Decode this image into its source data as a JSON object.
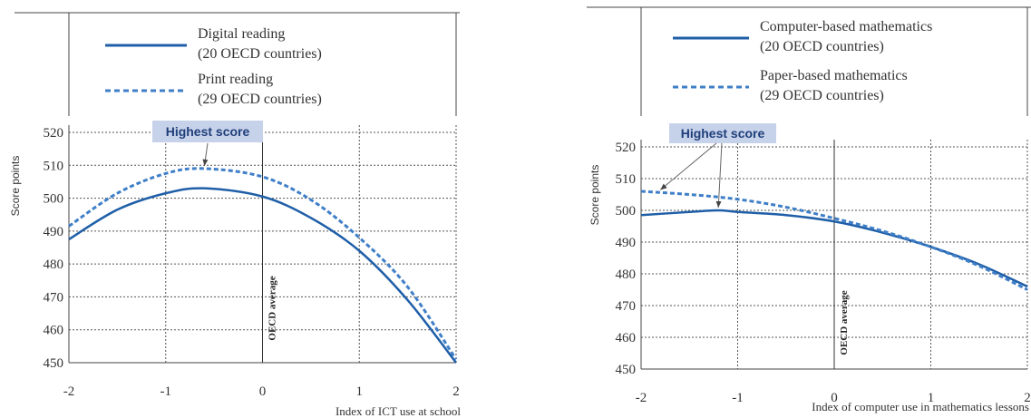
{
  "chart_data": [
    {
      "type": "line",
      "title": "",
      "xlabel": "Index of ICT use at school",
      "ylabel": "Score points",
      "xlim": [
        -2,
        2
      ],
      "ylim": [
        450,
        520
      ],
      "xticks": [
        "-2",
        "-1",
        "0",
        "1",
        "2"
      ],
      "yticks": [
        "450",
        "460",
        "470",
        "480",
        "490",
        "500",
        "510",
        "520"
      ],
      "grid": true,
      "reference_line": {
        "x": 0,
        "label": "OECD average"
      },
      "annotation": {
        "label": "Highest score"
      },
      "legend": {
        "position": "top",
        "entries": [
          {
            "name": "Digital reading",
            "sub": "(20 OECD countries)",
            "style": "solid"
          },
          {
            "name": "Print reading",
            "sub": "(29 OECD countries)",
            "style": "dashed"
          }
        ]
      },
      "series": [
        {
          "name": "Digital reading",
          "style": "solid",
          "color": "#1f5fa8",
          "x": [
            -2,
            -1.5,
            -1,
            -0.6,
            0,
            0.5,
            1,
            1.5,
            2
          ],
          "y": [
            487.5,
            496.5,
            501.5,
            503,
            500.5,
            494,
            484,
            469,
            450
          ]
        },
        {
          "name": "Print reading",
          "style": "dashed",
          "color": "#3f7fc8",
          "x": [
            -2,
            -1.5,
            -1,
            -0.6,
            0,
            0.5,
            1,
            1.5,
            2
          ],
          "y": [
            491.5,
            501.5,
            507.5,
            509,
            506.5,
            499.5,
            488,
            473,
            451
          ]
        }
      ]
    },
    {
      "type": "line",
      "title": "",
      "xlabel": "Index of computer use in mathematics lessons",
      "ylabel": "Score points",
      "xlim": [
        -2,
        2
      ],
      "ylim": [
        450,
        520
      ],
      "xticks": [
        "-2",
        "-1",
        "0",
        "1",
        "2"
      ],
      "yticks": [
        "450",
        "460",
        "470",
        "480",
        "490",
        "500",
        "510",
        "520"
      ],
      "grid": true,
      "reference_line": {
        "x": 0,
        "label": "OECD average"
      },
      "annotation": {
        "label": "Highest score"
      },
      "legend": {
        "position": "top",
        "entries": [
          {
            "name": "Computer-based mathematics",
            "sub": "(20 OECD countries)",
            "style": "solid"
          },
          {
            "name": "Paper-based mathematics",
            "sub": "(29 OECD countries)",
            "style": "dashed"
          }
        ]
      },
      "series": [
        {
          "name": "Computer-based mathematics",
          "style": "solid",
          "color": "#1f5fa8",
          "x": [
            -2,
            -1.5,
            -1.2,
            -1,
            -0.5,
            0,
            0.5,
            1,
            1.5,
            2
          ],
          "y": [
            498.5,
            499.5,
            500,
            499.5,
            498.5,
            496.5,
            493,
            488.5,
            483,
            476
          ]
        },
        {
          "name": "Paper-based mathematics",
          "style": "dashed",
          "color": "#3f7fc8",
          "x": [
            -2,
            -1.5,
            -1,
            -0.5,
            0,
            0.5,
            1,
            1.5,
            2
          ],
          "y": [
            506,
            505,
            503.5,
            501,
            497.5,
            493.5,
            488.5,
            482.5,
            475
          ]
        }
      ]
    }
  ]
}
